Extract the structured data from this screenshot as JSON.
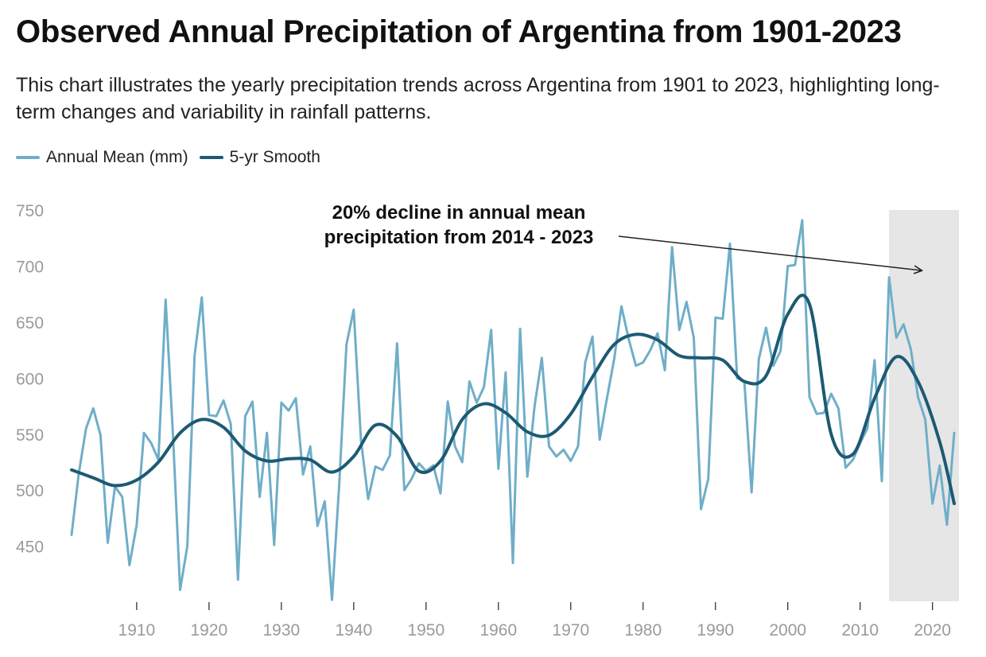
{
  "chart_data": {
    "type": "line",
    "title": "Observed Annual Precipitation of Argentina from 1901-2023",
    "subtitle": "This chart illustrates the yearly precipitation trends across Argentina from 1901 to 2023, highlighting long-term changes and variability in rainfall patterns.",
    "xlabel": "",
    "ylabel": "",
    "xlim": [
      1901,
      2023
    ],
    "ylim": [
      400,
      760
    ],
    "x_ticks": [
      1910,
      1920,
      1930,
      1940,
      1950,
      1960,
      1970,
      1980,
      1990,
      2000,
      2010,
      2020
    ],
    "y_ticks": [
      450,
      500,
      550,
      600,
      650,
      700,
      750
    ],
    "grid": false,
    "legend_position": "top-left",
    "highlight_range": [
      2014,
      2023
    ],
    "highlight_color": "#e6e6e6",
    "annotation": {
      "lines": [
        "20% decline in annual mean",
        "precipitation from 2014 - 2023"
      ],
      "arrow_to": {
        "x": 2019,
        "y": 696
      }
    },
    "series": [
      {
        "name": "Annual Mean (mm)",
        "color": "#6faec8",
        "x": [
          1901,
          1902,
          1903,
          1904,
          1905,
          1906,
          1907,
          1908,
          1909,
          1910,
          1911,
          1912,
          1913,
          1914,
          1915,
          1916,
          1917,
          1918,
          1919,
          1920,
          1921,
          1922,
          1923,
          1924,
          1925,
          1926,
          1927,
          1928,
          1929,
          1930,
          1931,
          1932,
          1933,
          1934,
          1935,
          1936,
          1937,
          1938,
          1939,
          1940,
          1941,
          1942,
          1943,
          1944,
          1945,
          1946,
          1947,
          1948,
          1949,
          1950,
          1951,
          1952,
          1953,
          1954,
          1955,
          1956,
          1957,
          1958,
          1959,
          1960,
          1961,
          1962,
          1963,
          1964,
          1965,
          1966,
          1967,
          1968,
          1969,
          1970,
          1971,
          1972,
          1973,
          1974,
          1975,
          1976,
          1977,
          1978,
          1979,
          1980,
          1981,
          1982,
          1983,
          1984,
          1985,
          1986,
          1987,
          1988,
          1989,
          1990,
          1991,
          1992,
          1993,
          1994,
          1995,
          1996,
          1997,
          1998,
          1999,
          2000,
          2001,
          2002,
          2003,
          2004,
          2005,
          2006,
          2007,
          2008,
          2009,
          2010,
          2011,
          2012,
          2013,
          2014,
          2015,
          2016,
          2017,
          2018,
          2019,
          2020,
          2021,
          2022,
          2023
        ],
        "values": [
          460,
          515,
          555,
          573,
          549,
          453,
          503,
          494,
          433,
          469,
          551,
          542,
          527,
          670,
          551,
          411,
          450,
          620,
          672,
          567,
          566,
          580,
          559,
          420,
          566,
          579,
          494,
          551,
          451,
          578,
          571,
          582,
          514,
          539,
          468,
          490,
          402,
          505,
          630,
          661,
          545,
          492,
          521,
          518,
          531,
          631,
          500,
          510,
          524,
          517,
          522,
          497,
          579,
          539,
          525,
          597,
          578,
          592,
          643,
          519,
          605,
          435,
          644,
          512,
          575,
          618,
          539,
          530,
          536,
          526,
          539,
          614,
          637,
          545,
          582,
          617,
          664,
          635,
          611,
          614,
          625,
          640,
          607,
          717,
          643,
          668,
          636,
          483,
          510,
          654,
          653,
          720,
          600,
          597,
          498,
          617,
          645,
          611,
          624,
          700,
          701,
          741,
          583,
          568,
          569,
          586,
          573,
          520,
          527,
          542,
          555,
          616,
          508,
          690,
          636,
          648,
          626,
          583,
          563,
          488,
          522,
          469,
          551
        ]
      },
      {
        "name": "5-yr Smooth",
        "color": "#1d5a73",
        "x": [
          1901,
          1904,
          1907,
          1910,
          1913,
          1916,
          1919,
          1922,
          1925,
          1928,
          1931,
          1934,
          1937,
          1940,
          1943,
          1946,
          1949,
          1952,
          1955,
          1958,
          1961,
          1964,
          1967,
          1970,
          1973,
          1976,
          1979,
          1982,
          1985,
          1988,
          1991,
          1994,
          1997,
          2000,
          2003,
          2006,
          2009,
          2012,
          2015,
          2018,
          2021,
          2023
        ],
        "values": [
          518,
          511,
          504,
          509,
          525,
          551,
          563,
          556,
          535,
          526,
          528,
          527,
          516,
          530,
          558,
          548,
          517,
          526,
          563,
          577,
          569,
          552,
          549,
          568,
          601,
          630,
          639,
          634,
          620,
          618,
          616,
          597,
          602,
          657,
          666,
          550,
          532,
          582,
          619,
          597,
          543,
          488
        ]
      }
    ]
  }
}
